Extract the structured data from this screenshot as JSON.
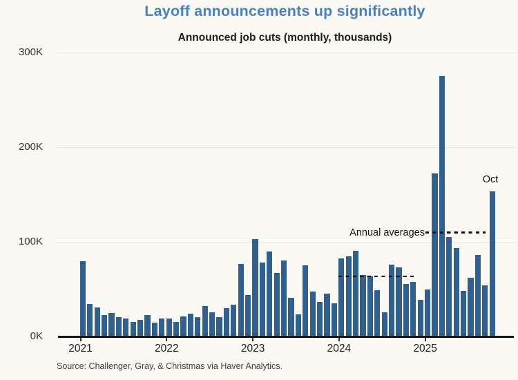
{
  "header": {
    "title": "Layoff announcements up significantly",
    "subtitle": "Announced job cuts (monthly, thousands)"
  },
  "footer": {
    "source": "Source: Challenger, Gray, & Christmas via Haver Analytics."
  },
  "colors": {
    "background": "#fbf9f3",
    "title": "#4a80c4",
    "subtitle_text": "#1d1d1d",
    "bar": "#2f608f",
    "gridline": "#e7e5e0",
    "axis": "#151515",
    "dashed_line": "#111111",
    "tick": "#333333"
  },
  "chart_data": {
    "type": "bar",
    "title": "Layoff announcements up significantly",
    "subtitle": "Announced job cuts (monthly, thousands)",
    "unit": "thousands of announced job cuts per month",
    "start_month": "2021-01",
    "end_month": "2025-10",
    "x_tick_labels": [
      "2021",
      "2022",
      "2023",
      "2024",
      "2025"
    ],
    "y_tick_labels": [
      "0K",
      "100K",
      "200K",
      "300K"
    ],
    "y_tick_values": [
      0,
      100,
      200,
      300
    ],
    "ylim": [
      0,
      300
    ],
    "grid": "horizontal-only",
    "series": [
      {
        "name": "Announced job cuts",
        "values": [
          79.6,
          34.5,
          30.6,
          22.9,
          24.6,
          20.5,
          18.9,
          15.7,
          17.9,
          22.8,
          14.9,
          19.1,
          19.1,
          15.2,
          21.4,
          24.3,
          20.7,
          32.5,
          25.8,
          20.4,
          29.9,
          33.8,
          76.8,
          43.7,
          102.9,
          77.8,
          89.7,
          67.0,
          80.1,
          40.7,
          23.7,
          75.2,
          47.5,
          36.8,
          45.5,
          34.8,
          82.3,
          84.6,
          90.3,
          64.8,
          63.8,
          48.8,
          25.9,
          75.9,
          72.8,
          55.6,
          57.7,
          38.8,
          49.8,
          172.0,
          275.2,
          105.4,
          93.8,
          48.0,
          62.1,
          85.9,
          54.1,
          153.1
        ]
      }
    ],
    "annotations": {
      "annual_averages_label": "Annual averages",
      "annual_averages": [
        {
          "year": "2024",
          "value": 63.4
        },
        {
          "year": "2025",
          "value": 110.0
        }
      ],
      "last_bar_label": "Oct"
    }
  }
}
